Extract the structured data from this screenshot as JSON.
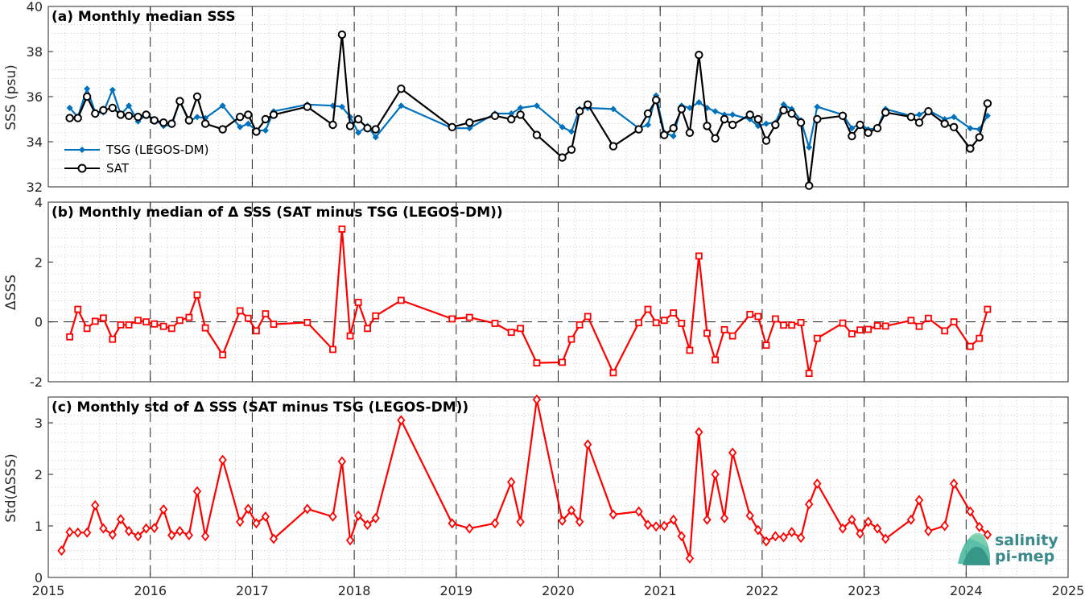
{
  "chart_data": [
    {
      "type": "line",
      "title": "(a) Monthly median SSS",
      "ylabel": "SSS (psu)",
      "xlim": [
        2015,
        2025
      ],
      "ylim": [
        32,
        40
      ],
      "yticks": [
        32,
        34,
        36,
        38,
        40
      ],
      "grid": "minor-dotted",
      "legend_position": "lower-left",
      "series": [
        {
          "name": "TSG (LEGOS-DM)",
          "color": "#0072BD",
          "marker": "diamond-filled",
          "x": [
            2015.21,
            2015.29,
            2015.38,
            2015.46,
            2015.54,
            2015.63,
            2015.71,
            2015.79,
            2015.88,
            2015.96,
            2016.04,
            2016.13,
            2016.21,
            2016.29,
            2016.38,
            2016.46,
            2016.54,
            2016.71,
            2016.88,
            2016.96,
            2017.04,
            2017.13,
            2017.21,
            2017.54,
            2017.79,
            2017.88,
            2017.96,
            2018.04,
            2018.13,
            2018.21,
            2018.46,
            2018.96,
            2019.13,
            2019.38,
            2019.54,
            2019.63,
            2019.79,
            2020.04,
            2020.13,
            2020.21,
            2020.29,
            2020.54,
            2020.79,
            2020.88,
            2020.96,
            2021.04,
            2021.13,
            2021.21,
            2021.29,
            2021.38,
            2021.46,
            2021.54,
            2021.63,
            2021.71,
            2021.88,
            2021.96,
            2022.04,
            2022.13,
            2022.21,
            2022.29,
            2022.38,
            2022.46,
            2022.54,
            2022.79,
            2022.88,
            2022.96,
            2023.04,
            2023.13,
            2023.21,
            2023.46,
            2023.54,
            2023.63,
            2023.79,
            2023.88,
            2024.04,
            2024.13,
            2024.21
          ],
          "y": [
            35.5,
            35.1,
            36.35,
            35.3,
            35.3,
            36.3,
            35.2,
            35.6,
            34.9,
            35.2,
            35.0,
            34.7,
            34.75,
            35.8,
            34.9,
            35.1,
            35.05,
            35.6,
            34.65,
            34.8,
            34.5,
            34.5,
            35.35,
            35.65,
            35.6,
            35.55,
            35.1,
            34.4,
            34.7,
            34.2,
            35.6,
            34.6,
            34.6,
            35.25,
            35.25,
            35.5,
            35.6,
            34.65,
            34.45,
            35.45,
            35.5,
            35.45,
            34.6,
            34.75,
            36.05,
            34.4,
            34.25,
            35.6,
            35.5,
            35.75,
            35.5,
            35.35,
            35.2,
            35.2,
            35.0,
            34.7,
            34.8,
            34.85,
            35.65,
            35.45,
            34.95,
            33.75,
            35.55,
            35.2,
            34.6,
            34.8,
            34.55,
            34.6,
            35.45,
            35.15,
            35.2,
            35.4,
            35.0,
            35.1,
            34.6,
            34.55,
            35.15
          ]
        },
        {
          "name": "SAT",
          "color": "#000000",
          "marker": "circle-open",
          "x": [
            2015.21,
            2015.29,
            2015.38,
            2015.46,
            2015.54,
            2015.63,
            2015.71,
            2015.79,
            2015.88,
            2015.96,
            2016.04,
            2016.13,
            2016.21,
            2016.29,
            2016.38,
            2016.46,
            2016.54,
            2016.71,
            2016.88,
            2016.96,
            2017.04,
            2017.13,
            2017.21,
            2017.54,
            2017.79,
            2017.88,
            2017.96,
            2018.04,
            2018.13,
            2018.21,
            2018.46,
            2018.96,
            2019.13,
            2019.38,
            2019.54,
            2019.63,
            2019.79,
            2020.04,
            2020.13,
            2020.21,
            2020.29,
            2020.54,
            2020.79,
            2020.88,
            2020.96,
            2021.04,
            2021.13,
            2021.21,
            2021.29,
            2021.38,
            2021.46,
            2021.54,
            2021.63,
            2021.71,
            2021.88,
            2021.96,
            2022.04,
            2022.13,
            2022.21,
            2022.29,
            2022.38,
            2022.46,
            2022.54,
            2022.79,
            2022.88,
            2022.96,
            2023.04,
            2023.13,
            2023.21,
            2023.46,
            2023.54,
            2023.63,
            2023.79,
            2023.88,
            2024.04,
            2024.13,
            2024.21
          ],
          "y": [
            35.05,
            35.05,
            36.0,
            35.25,
            35.4,
            35.5,
            35.2,
            35.15,
            35.1,
            35.2,
            34.95,
            34.85,
            34.8,
            35.8,
            34.95,
            36.0,
            34.8,
            34.55,
            35.1,
            35.2,
            34.45,
            35.0,
            35.2,
            35.55,
            34.75,
            38.75,
            34.7,
            35.0,
            34.6,
            34.55,
            36.35,
            34.65,
            34.85,
            35.15,
            35.0,
            35.2,
            34.3,
            33.3,
            33.65,
            35.35,
            35.65,
            33.8,
            34.55,
            35.25,
            35.85,
            34.3,
            34.6,
            35.45,
            34.4,
            37.85,
            34.7,
            34.15,
            35.0,
            34.75,
            35.2,
            35.0,
            34.05,
            34.75,
            35.4,
            35.25,
            34.85,
            32.05,
            35.0,
            35.15,
            34.25,
            34.75,
            34.4,
            34.6,
            35.3,
            35.1,
            34.85,
            35.35,
            34.8,
            34.65,
            33.7,
            34.2,
            35.7
          ]
        }
      ]
    },
    {
      "type": "line",
      "title": "(b) Monthly median of Δ SSS (SAT minus TSG (LEGOS-DM))",
      "ylabel": "ΔSSS",
      "xlim": [
        2015,
        2025
      ],
      "ylim": [
        -2,
        4
      ],
      "yticks": [
        -2,
        0,
        2,
        4
      ],
      "zero_line": true,
      "grid": "minor-dotted",
      "series": [
        {
          "color": "#FF0000",
          "marker": "square-open",
          "x": [
            2015.21,
            2015.29,
            2015.38,
            2015.46,
            2015.54,
            2015.63,
            2015.71,
            2015.79,
            2015.88,
            2015.96,
            2016.04,
            2016.13,
            2016.21,
            2016.29,
            2016.38,
            2016.46,
            2016.54,
            2016.71,
            2016.88,
            2016.96,
            2017.04,
            2017.13,
            2017.21,
            2017.54,
            2017.79,
            2017.88,
            2017.96,
            2018.04,
            2018.13,
            2018.21,
            2018.46,
            2018.96,
            2019.13,
            2019.38,
            2019.54,
            2019.63,
            2019.79,
            2020.04,
            2020.13,
            2020.21,
            2020.29,
            2020.54,
            2020.79,
            2020.88,
            2020.96,
            2021.04,
            2021.13,
            2021.21,
            2021.29,
            2021.38,
            2021.46,
            2021.54,
            2021.63,
            2021.71,
            2021.88,
            2021.96,
            2022.04,
            2022.13,
            2022.21,
            2022.29,
            2022.38,
            2022.46,
            2022.54,
            2022.79,
            2022.88,
            2022.96,
            2023.04,
            2023.13,
            2023.21,
            2023.46,
            2023.54,
            2023.63,
            2023.79,
            2023.88,
            2024.04,
            2024.13,
            2024.21
          ],
          "y": [
            -0.5,
            0.42,
            -0.22,
            0.02,
            0.13,
            -0.58,
            -0.1,
            -0.1,
            0.05,
            0.0,
            -0.07,
            -0.15,
            -0.22,
            0.05,
            0.15,
            0.9,
            -0.2,
            -1.1,
            0.37,
            0.12,
            -0.3,
            0.27,
            -0.08,
            -0.02,
            -0.92,
            3.1,
            -0.47,
            0.65,
            -0.22,
            0.2,
            0.72,
            0.1,
            0.15,
            -0.05,
            -0.35,
            -0.22,
            -1.37,
            -1.35,
            -0.58,
            -0.1,
            0.18,
            -1.7,
            -0.03,
            0.42,
            -0.03,
            0.05,
            0.3,
            -0.05,
            -0.95,
            2.2,
            -0.38,
            -1.27,
            -0.26,
            -0.47,
            0.25,
            0.18,
            -0.78,
            0.1,
            -0.11,
            -0.11,
            -0.02,
            -1.72,
            -0.55,
            -0.04,
            -0.4,
            -0.27,
            -0.25,
            -0.13,
            -0.14,
            0.05,
            -0.15,
            0.12,
            -0.3,
            0.0,
            -0.82,
            -0.55,
            0.42
          ]
        }
      ]
    },
    {
      "type": "line",
      "title": "(c) Monthly std of Δ SSS (SAT minus TSG (LEGOS-DM))",
      "ylabel": "Std(ΔSSS)",
      "xlabel": "",
      "xlim": [
        2015,
        2025
      ],
      "xticks": [
        2015,
        2016,
        2017,
        2018,
        2019,
        2020,
        2021,
        2022,
        2023,
        2024,
        2025
      ],
      "ylim": [
        0,
        3.5
      ],
      "yticks": [
        0,
        1,
        2,
        3
      ],
      "grid": "minor-dotted",
      "series": [
        {
          "color": "#FF0000",
          "marker": "diamond-open",
          "x": [
            2015.13,
            2015.21,
            2015.29,
            2015.38,
            2015.46,
            2015.54,
            2015.63,
            2015.71,
            2015.79,
            2015.88,
            2015.96,
            2016.04,
            2016.13,
            2016.21,
            2016.29,
            2016.38,
            2016.46,
            2016.54,
            2016.71,
            2016.88,
            2016.96,
            2017.04,
            2017.13,
            2017.21,
            2017.54,
            2017.79,
            2017.88,
            2017.96,
            2018.04,
            2018.13,
            2018.21,
            2018.46,
            2018.96,
            2019.13,
            2019.38,
            2019.54,
            2019.63,
            2019.79,
            2020.04,
            2020.13,
            2020.21,
            2020.29,
            2020.54,
            2020.79,
            2020.88,
            2020.96,
            2021.04,
            2021.13,
            2021.21,
            2021.29,
            2021.38,
            2021.46,
            2021.54,
            2021.63,
            2021.71,
            2021.88,
            2021.96,
            2022.04,
            2022.13,
            2022.21,
            2022.29,
            2022.38,
            2022.46,
            2022.54,
            2022.79,
            2022.88,
            2022.96,
            2023.04,
            2023.13,
            2023.21,
            2023.46,
            2023.54,
            2023.63,
            2023.79,
            2023.88,
            2024.04,
            2024.13,
            2024.21
          ],
          "y": [
            0.52,
            0.88,
            0.87,
            0.87,
            1.4,
            0.95,
            0.83,
            1.13,
            0.9,
            0.8,
            0.95,
            0.96,
            1.32,
            0.82,
            0.9,
            0.82,
            1.67,
            0.8,
            2.28,
            1.08,
            1.33,
            1.05,
            1.18,
            0.75,
            1.33,
            1.18,
            2.25,
            0.72,
            1.2,
            1.02,
            1.15,
            3.05,
            1.05,
            0.95,
            1.05,
            1.85,
            1.08,
            3.45,
            1.1,
            1.3,
            1.08,
            2.58,
            1.22,
            1.28,
            1.02,
            0.99,
            1.0,
            1.12,
            0.8,
            0.37,
            2.82,
            1.12,
            2.0,
            1.15,
            2.42,
            1.2,
            0.92,
            0.7,
            0.8,
            0.78,
            0.88,
            0.77,
            1.42,
            1.82,
            0.95,
            1.12,
            0.85,
            1.08,
            0.95,
            0.75,
            1.12,
            1.5,
            0.9,
            1.0,
            1.82,
            1.28,
            0.98,
            0.83
          ]
        }
      ]
    }
  ],
  "logo": {
    "line1": "salinity",
    "line2": "pi-mep"
  }
}
